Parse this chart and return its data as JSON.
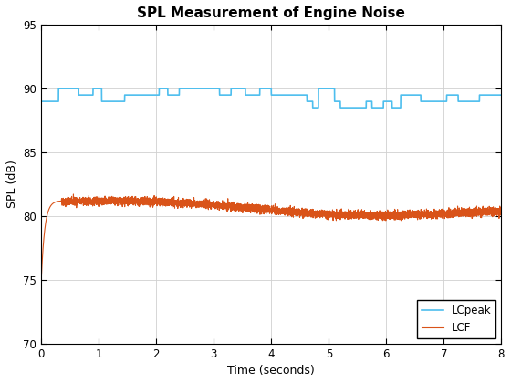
{
  "title": "SPL Measurement of Engine Noise",
  "xlabel": "Time (seconds)",
  "ylabel": "SPL (dB)",
  "xlim": [
    0,
    8
  ],
  "ylim": [
    70,
    95
  ],
  "xticks": [
    0,
    1,
    2,
    3,
    4,
    5,
    6,
    7,
    8
  ],
  "yticks": [
    70,
    75,
    80,
    85,
    90,
    95
  ],
  "lcpeak_color": "#4DBEEE",
  "lcf_color": "#D95319",
  "background_color": "#FFFFFF",
  "grid_color": "#D0D0D0",
  "legend_labels": [
    "LCpeak",
    "LCF"
  ],
  "figsize": [
    5.6,
    4.2
  ],
  "dpi": 100,
  "title_fontsize": 11,
  "label_fontsize": 9,
  "tick_fontsize": 8.5,
  "legend_fontsize": 8.5
}
